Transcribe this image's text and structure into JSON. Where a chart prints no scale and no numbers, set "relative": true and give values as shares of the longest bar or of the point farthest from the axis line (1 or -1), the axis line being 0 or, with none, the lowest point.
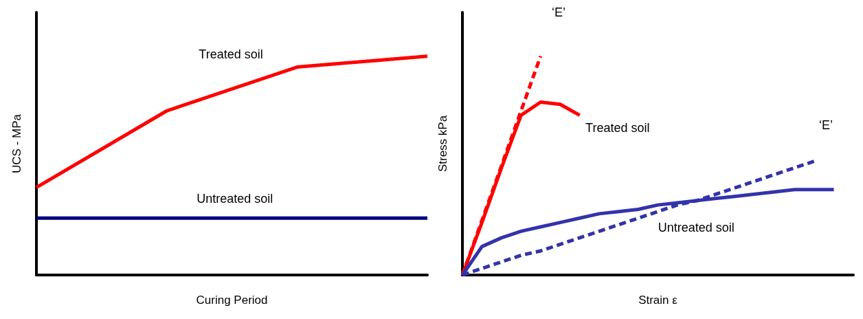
{
  "chart_data": [
    {
      "type": "line",
      "relative": true,
      "xlabel": "Curing Period",
      "ylabel": "UCS - MPa",
      "grid": false,
      "marker": "none",
      "categories": [
        null,
        null,
        null,
        null
      ],
      "series": [
        {
          "color": "#ff0000",
          "values": [
            0.4,
            0.75,
            0.95,
            1
          ]
        },
        {
          "color": "#000080",
          "values": [
            0.26,
            0.26,
            0.26,
            0.26
          ]
        }
      ],
      "annotations": [
        "Treated soil",
        "Untreated soil"
      ]
    },
    {
      "type": "line",
      "relative": true,
      "xlabel": "Strain ε",
      "ylabel": "Stress kPa",
      "grid": false,
      "marker": "none",
      "categories": [
        null,
        null,
        null,
        null,
        null,
        null,
        null,
        null,
        null,
        null,
        null,
        null,
        null,
        null,
        null,
        null,
        null,
        null,
        null,
        null,
        null
      ],
      "series": [
        {
          "color": "#ff0000",
          "line_style": "dashed",
          "values": [
            0,
            0.25,
            0.5,
            0.75,
            1,
            null,
            null,
            null,
            null,
            null,
            null,
            null,
            null,
            null,
            null,
            null,
            null,
            null,
            null,
            null,
            null
          ]
        },
        {
          "color": "#ff0000",
          "values": [
            0,
            0.24,
            0.49,
            0.73,
            0.79,
            0.78,
            0.73,
            null,
            null,
            null,
            null,
            null,
            null,
            null,
            null,
            null,
            null,
            null,
            null,
            null,
            null
          ]
        },
        {
          "color": "#3333aa",
          "line_style": "dashed",
          "values": [
            0,
            0.03,
            0.06,
            0.09,
            0.11,
            0.14,
            0.17,
            0.2,
            0.23,
            0.26,
            0.29,
            0.32,
            0.34,
            0.37,
            0.4,
            0.43,
            0.46,
            0.49,
            0.52,
            null,
            null
          ]
        },
        {
          "color": "#3333aa",
          "values": [
            0,
            0.13,
            0.17,
            0.2,
            0.22,
            0.24,
            0.26,
            0.28,
            0.29,
            0.3,
            0.32,
            0.33,
            0.34,
            0.35,
            0.36,
            0.37,
            0.38,
            0.39,
            0.39,
            0.39,
            null
          ]
        }
      ],
      "annotations": [
        "‘E’",
        "Treated soil",
        "‘E’",
        "Untreated soil"
      ]
    }
  ]
}
